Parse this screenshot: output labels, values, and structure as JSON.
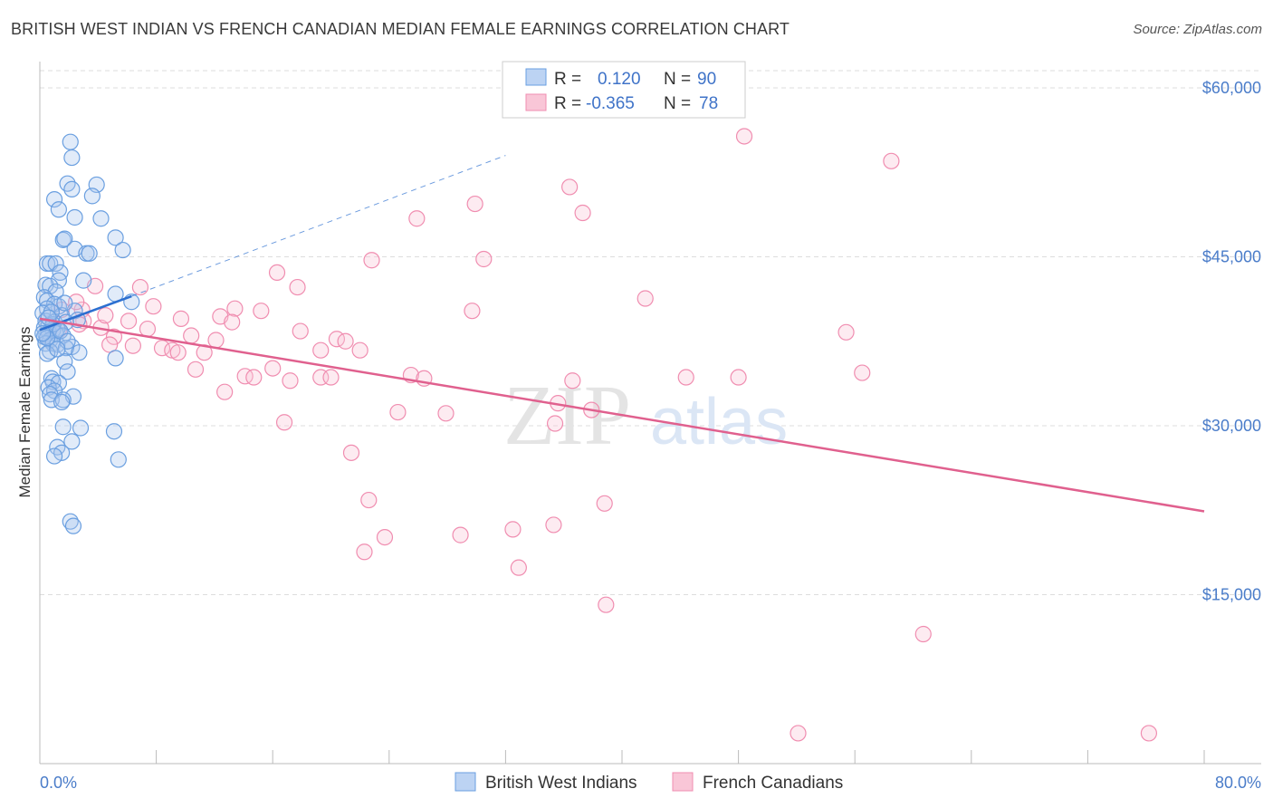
{
  "title": "BRITISH WEST INDIAN VS FRENCH CANADIAN MEDIAN FEMALE EARNINGS CORRELATION CHART",
  "source": "Source: ZipAtlas.com",
  "watermark": {
    "zip": "ZIP",
    "atlas": "atlas"
  },
  "colors": {
    "blue": "#6a9fe0",
    "blue_line": "#2b6fd0",
    "pink": "#f08db0",
    "pink_line": "#e0608e",
    "grid": "#dddddd",
    "axis_label": "#4a7cc9"
  },
  "chart_data": {
    "type": "scatter",
    "title": "BRITISH WEST INDIAN VS FRENCH CANADIAN MEDIAN FEMALE EARNINGS CORRELATION CHART",
    "xlabel": "",
    "ylabel": "Median Female Earnings",
    "xlim": [
      0,
      80
    ],
    "ylim": [
      0,
      61000
    ],
    "x_tick_labels": [
      "0.0%",
      "80.0%"
    ],
    "y_ticks": [
      {
        "value": 15000,
        "label": "$15,000"
      },
      {
        "value": 30000,
        "label": "$30,000"
      },
      {
        "value": 45000,
        "label": "$45,000"
      },
      {
        "value": 60000,
        "label": "$60,000"
      }
    ],
    "legend": [
      {
        "r_label": "R =",
        "r_value": "0.120",
        "n_label": "N =",
        "n_value": "90"
      },
      {
        "r_label": "R =",
        "r_value": "-0.365",
        "n_label": "N =",
        "n_value": "78"
      }
    ],
    "series": [
      {
        "name": "British West Indians",
        "color": "#6a9fe0",
        "trend": {
          "x0": 0,
          "y0": 38500,
          "x1": 6.3,
          "y1": 41500,
          "dash_to_x": 32,
          "dash_to_y": 54000
        },
        "points": [
          [
            2.1,
            55200
          ],
          [
            2.2,
            53800
          ],
          [
            1.9,
            51500
          ],
          [
            3.9,
            51400
          ],
          [
            2.2,
            51000
          ],
          [
            3.6,
            50400
          ],
          [
            1.0,
            50100
          ],
          [
            1.3,
            49200
          ],
          [
            4.2,
            48400
          ],
          [
            2.4,
            48500
          ],
          [
            1.6,
            46500
          ],
          [
            5.2,
            46700
          ],
          [
            1.7,
            46600
          ],
          [
            5.7,
            45600
          ],
          [
            2.4,
            45700
          ],
          [
            3.2,
            45300
          ],
          [
            3.4,
            45300
          ],
          [
            0.5,
            44400
          ],
          [
            0.7,
            44400
          ],
          [
            1.1,
            44400
          ],
          [
            1.4,
            43600
          ],
          [
            1.3,
            42900
          ],
          [
            3.0,
            42900
          ],
          [
            0.4,
            42500
          ],
          [
            0.7,
            42400
          ],
          [
            1.1,
            41900
          ],
          [
            5.2,
            41700
          ],
          [
            0.3,
            41400
          ],
          [
            0.5,
            41100
          ],
          [
            6.3,
            41000
          ],
          [
            1.3,
            40600
          ],
          [
            1.0,
            40800
          ],
          [
            0.5,
            40400
          ],
          [
            0.2,
            40000
          ],
          [
            2.4,
            40200
          ],
          [
            1.5,
            39800
          ],
          [
            2.6,
            39400
          ],
          [
            0.4,
            39300
          ],
          [
            1.0,
            39200
          ],
          [
            1.8,
            39200
          ],
          [
            0.6,
            38900
          ],
          [
            0.3,
            38700
          ],
          [
            1.2,
            38600
          ],
          [
            0.6,
            38300
          ],
          [
            0.9,
            38500
          ],
          [
            1.1,
            38200
          ],
          [
            0.4,
            38100
          ],
          [
            1.6,
            38000
          ],
          [
            0.3,
            37900
          ],
          [
            0.7,
            37600
          ],
          [
            0.4,
            37300
          ],
          [
            0.9,
            37300
          ],
          [
            1.2,
            37200
          ],
          [
            2.2,
            37000
          ],
          [
            1.8,
            36900
          ],
          [
            0.7,
            36600
          ],
          [
            2.7,
            36500
          ],
          [
            0.5,
            36400
          ],
          [
            5.2,
            36000
          ],
          [
            1.7,
            35700
          ],
          [
            1.9,
            34800
          ],
          [
            0.8,
            34200
          ],
          [
            0.9,
            33900
          ],
          [
            1.3,
            33800
          ],
          [
            0.6,
            33400
          ],
          [
            1.0,
            33100
          ],
          [
            0.7,
            32800
          ],
          [
            2.3,
            32600
          ],
          [
            0.8,
            32300
          ],
          [
            1.6,
            32300
          ],
          [
            1.5,
            32100
          ],
          [
            1.6,
            29900
          ],
          [
            2.8,
            29800
          ],
          [
            5.1,
            29500
          ],
          [
            2.2,
            28600
          ],
          [
            1.2,
            28100
          ],
          [
            1.5,
            27600
          ],
          [
            1.0,
            27300
          ],
          [
            5.4,
            27000
          ],
          [
            2.1,
            21500
          ],
          [
            2.3,
            21100
          ],
          [
            0.9,
            39000
          ],
          [
            0.5,
            37800
          ],
          [
            1.4,
            38400
          ],
          [
            0.8,
            40100
          ],
          [
            0.2,
            38200
          ],
          [
            1.9,
            37500
          ],
          [
            1.2,
            36800
          ],
          [
            0.6,
            39600
          ],
          [
            1.7,
            40900
          ]
        ]
      },
      {
        "name": "French Canadians",
        "color": "#f08db0",
        "trend": {
          "x0": 0,
          "y0": 39500,
          "x1": 80,
          "y1": 22400
        },
        "points": [
          [
            48.4,
            55700
          ],
          [
            58.5,
            53500
          ],
          [
            36.4,
            51200
          ],
          [
            29.9,
            49700
          ],
          [
            37.3,
            48900
          ],
          [
            25.9,
            48400
          ],
          [
            22.8,
            44700
          ],
          [
            30.5,
            44800
          ],
          [
            16.3,
            43600
          ],
          [
            17.7,
            42300
          ],
          [
            3.8,
            42400
          ],
          [
            6.9,
            42300
          ],
          [
            41.6,
            41300
          ],
          [
            1.5,
            40300
          ],
          [
            2.9,
            40300
          ],
          [
            7.8,
            40600
          ],
          [
            13.4,
            40400
          ],
          [
            15.2,
            40200
          ],
          [
            29.7,
            40200
          ],
          [
            12.4,
            39700
          ],
          [
            9.7,
            39500
          ],
          [
            3.0,
            39300
          ],
          [
            6.1,
            39300
          ],
          [
            13.2,
            39200
          ],
          [
            2.7,
            39000
          ],
          [
            4.2,
            38700
          ],
          [
            7.4,
            38600
          ],
          [
            17.9,
            38400
          ],
          [
            55.4,
            38300
          ],
          [
            5.1,
            37900
          ],
          [
            10.4,
            38000
          ],
          [
            12.1,
            37600
          ],
          [
            20.4,
            37700
          ],
          [
            21.0,
            37500
          ],
          [
            4.8,
            37200
          ],
          [
            6.4,
            37100
          ],
          [
            8.4,
            36900
          ],
          [
            9.1,
            36700
          ],
          [
            19.3,
            36700
          ],
          [
            22.0,
            36700
          ],
          [
            9.5,
            36500
          ],
          [
            11.3,
            36500
          ],
          [
            10.7,
            35000
          ],
          [
            16.0,
            35100
          ],
          [
            14.1,
            34400
          ],
          [
            14.7,
            34300
          ],
          [
            19.3,
            34300
          ],
          [
            20.0,
            34300
          ],
          [
            25.5,
            34500
          ],
          [
            26.4,
            34200
          ],
          [
            36.6,
            34000
          ],
          [
            44.4,
            34300
          ],
          [
            48.0,
            34300
          ],
          [
            56.5,
            34700
          ],
          [
            17.2,
            34000
          ],
          [
            12.7,
            33000
          ],
          [
            35.6,
            32000
          ],
          [
            37.9,
            31400
          ],
          [
            24.6,
            31200
          ],
          [
            27.9,
            31100
          ],
          [
            16.8,
            30300
          ],
          [
            35.4,
            30200
          ],
          [
            21.4,
            27600
          ],
          [
            22.6,
            23400
          ],
          [
            38.8,
            23100
          ],
          [
            35.3,
            21200
          ],
          [
            32.5,
            20800
          ],
          [
            28.9,
            20300
          ],
          [
            23.7,
            20100
          ],
          [
            22.3,
            18800
          ],
          [
            32.9,
            17400
          ],
          [
            38.9,
            14100
          ],
          [
            60.7,
            11500
          ],
          [
            52.1,
            2700
          ],
          [
            76.2,
            2700
          ],
          [
            1.3,
            38500
          ],
          [
            2.5,
            41000
          ],
          [
            4.5,
            39800
          ]
        ]
      }
    ]
  }
}
